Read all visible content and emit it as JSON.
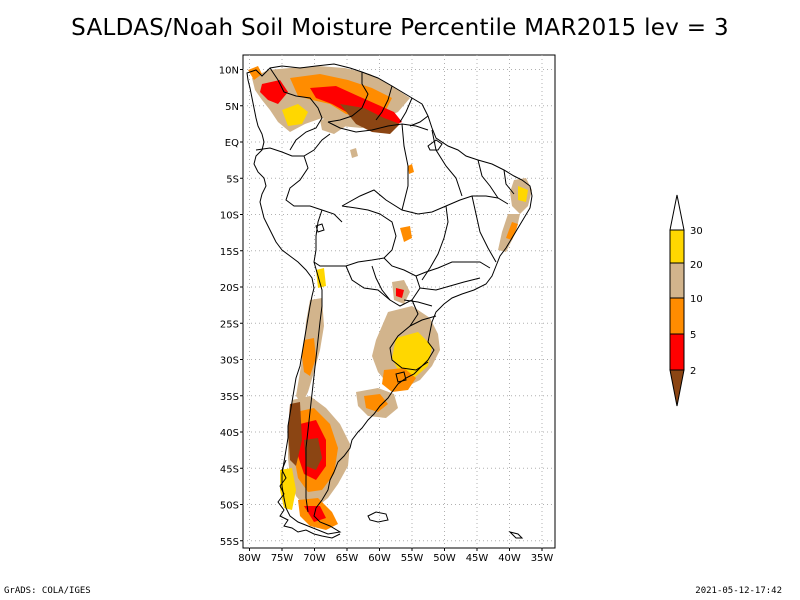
{
  "title": "SALDAS/Noah Soil Moisture Percentile MAR2015 lev = 3",
  "axes": {
    "lat_labels": [
      "10N",
      "5N",
      "EQ",
      "5S",
      "10S",
      "15S",
      "20S",
      "25S",
      "30S",
      "35S",
      "40S",
      "45S",
      "50S",
      "55S"
    ],
    "lat_values": [
      10,
      5,
      0,
      -5,
      -10,
      -15,
      -20,
      -25,
      -30,
      -35,
      -40,
      -45,
      -50,
      -55
    ],
    "lon_labels": [
      "80W",
      "75W",
      "70W",
      "65W",
      "60W",
      "55W",
      "50W",
      "45W",
      "40W",
      "35W"
    ],
    "lon_values": [
      -80,
      -75,
      -70,
      -65,
      -60,
      -55,
      -50,
      -45,
      -40,
      -35
    ],
    "lon_range": [
      -81,
      -33
    ],
    "lat_range": [
      -56,
      12
    ],
    "grid": true
  },
  "legend": {
    "placement": "right",
    "labels": [
      "2",
      "5",
      "10",
      "20",
      "30"
    ],
    "colors": {
      "lt2": "#8B4513",
      "2to5": "#FF0000",
      "5to10": "#FF8C00",
      "10to20": "#D2B48C",
      "20to30": "#FFD700",
      "gt30": "#FFFFFF"
    }
  },
  "footer": {
    "left": "GrADS: COLA/IGES",
    "right": "2021-05-12-17:42"
  }
}
